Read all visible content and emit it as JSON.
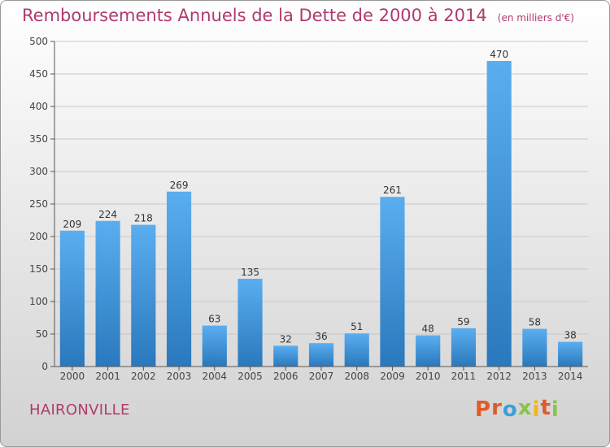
{
  "title": "Remboursements Annuels de la Dette de 2000 à 2014",
  "title_unit": "(en milliers d'€)",
  "commune": "HAIRONVILLE",
  "logo": {
    "letters": [
      "P",
      "r",
      "o",
      "x",
      "i",
      "t",
      "i"
    ],
    "colors": [
      "#e05a2a",
      "#e05a2a",
      "#3aa0d8",
      "#8bc34a",
      "#f2b61c",
      "#e05a2a",
      "#8bc34a"
    ]
  },
  "colors": {
    "title": "#b03a6e",
    "bar_top": "#5aaef0",
    "bar_bottom": "#2a78bd",
    "grid": "#c8c8c8",
    "axis": "#555555"
  },
  "chart_data": {
    "type": "bar",
    "categories": [
      "2000",
      "2001",
      "2002",
      "2003",
      "2004",
      "2005",
      "2006",
      "2007",
      "2008",
      "2009",
      "2010",
      "2011",
      "2012",
      "2013",
      "2014"
    ],
    "values": [
      209,
      224,
      218,
      269,
      63,
      135,
      32,
      36,
      51,
      261,
      48,
      59,
      470,
      58,
      38
    ],
    "value_labels": [
      "209",
      "224",
      "218",
      "269",
      "63",
      "135",
      "32",
      "36",
      "51",
      "261",
      "48",
      "59",
      "470",
      "58",
      "38"
    ],
    "yticks": [
      "0",
      "50",
      "100",
      "150",
      "200",
      "250",
      "300",
      "350",
      "400",
      "450",
      "500"
    ],
    "ylim": [
      0,
      500
    ],
    "xlabel": "",
    "ylabel": "",
    "grid": true
  }
}
